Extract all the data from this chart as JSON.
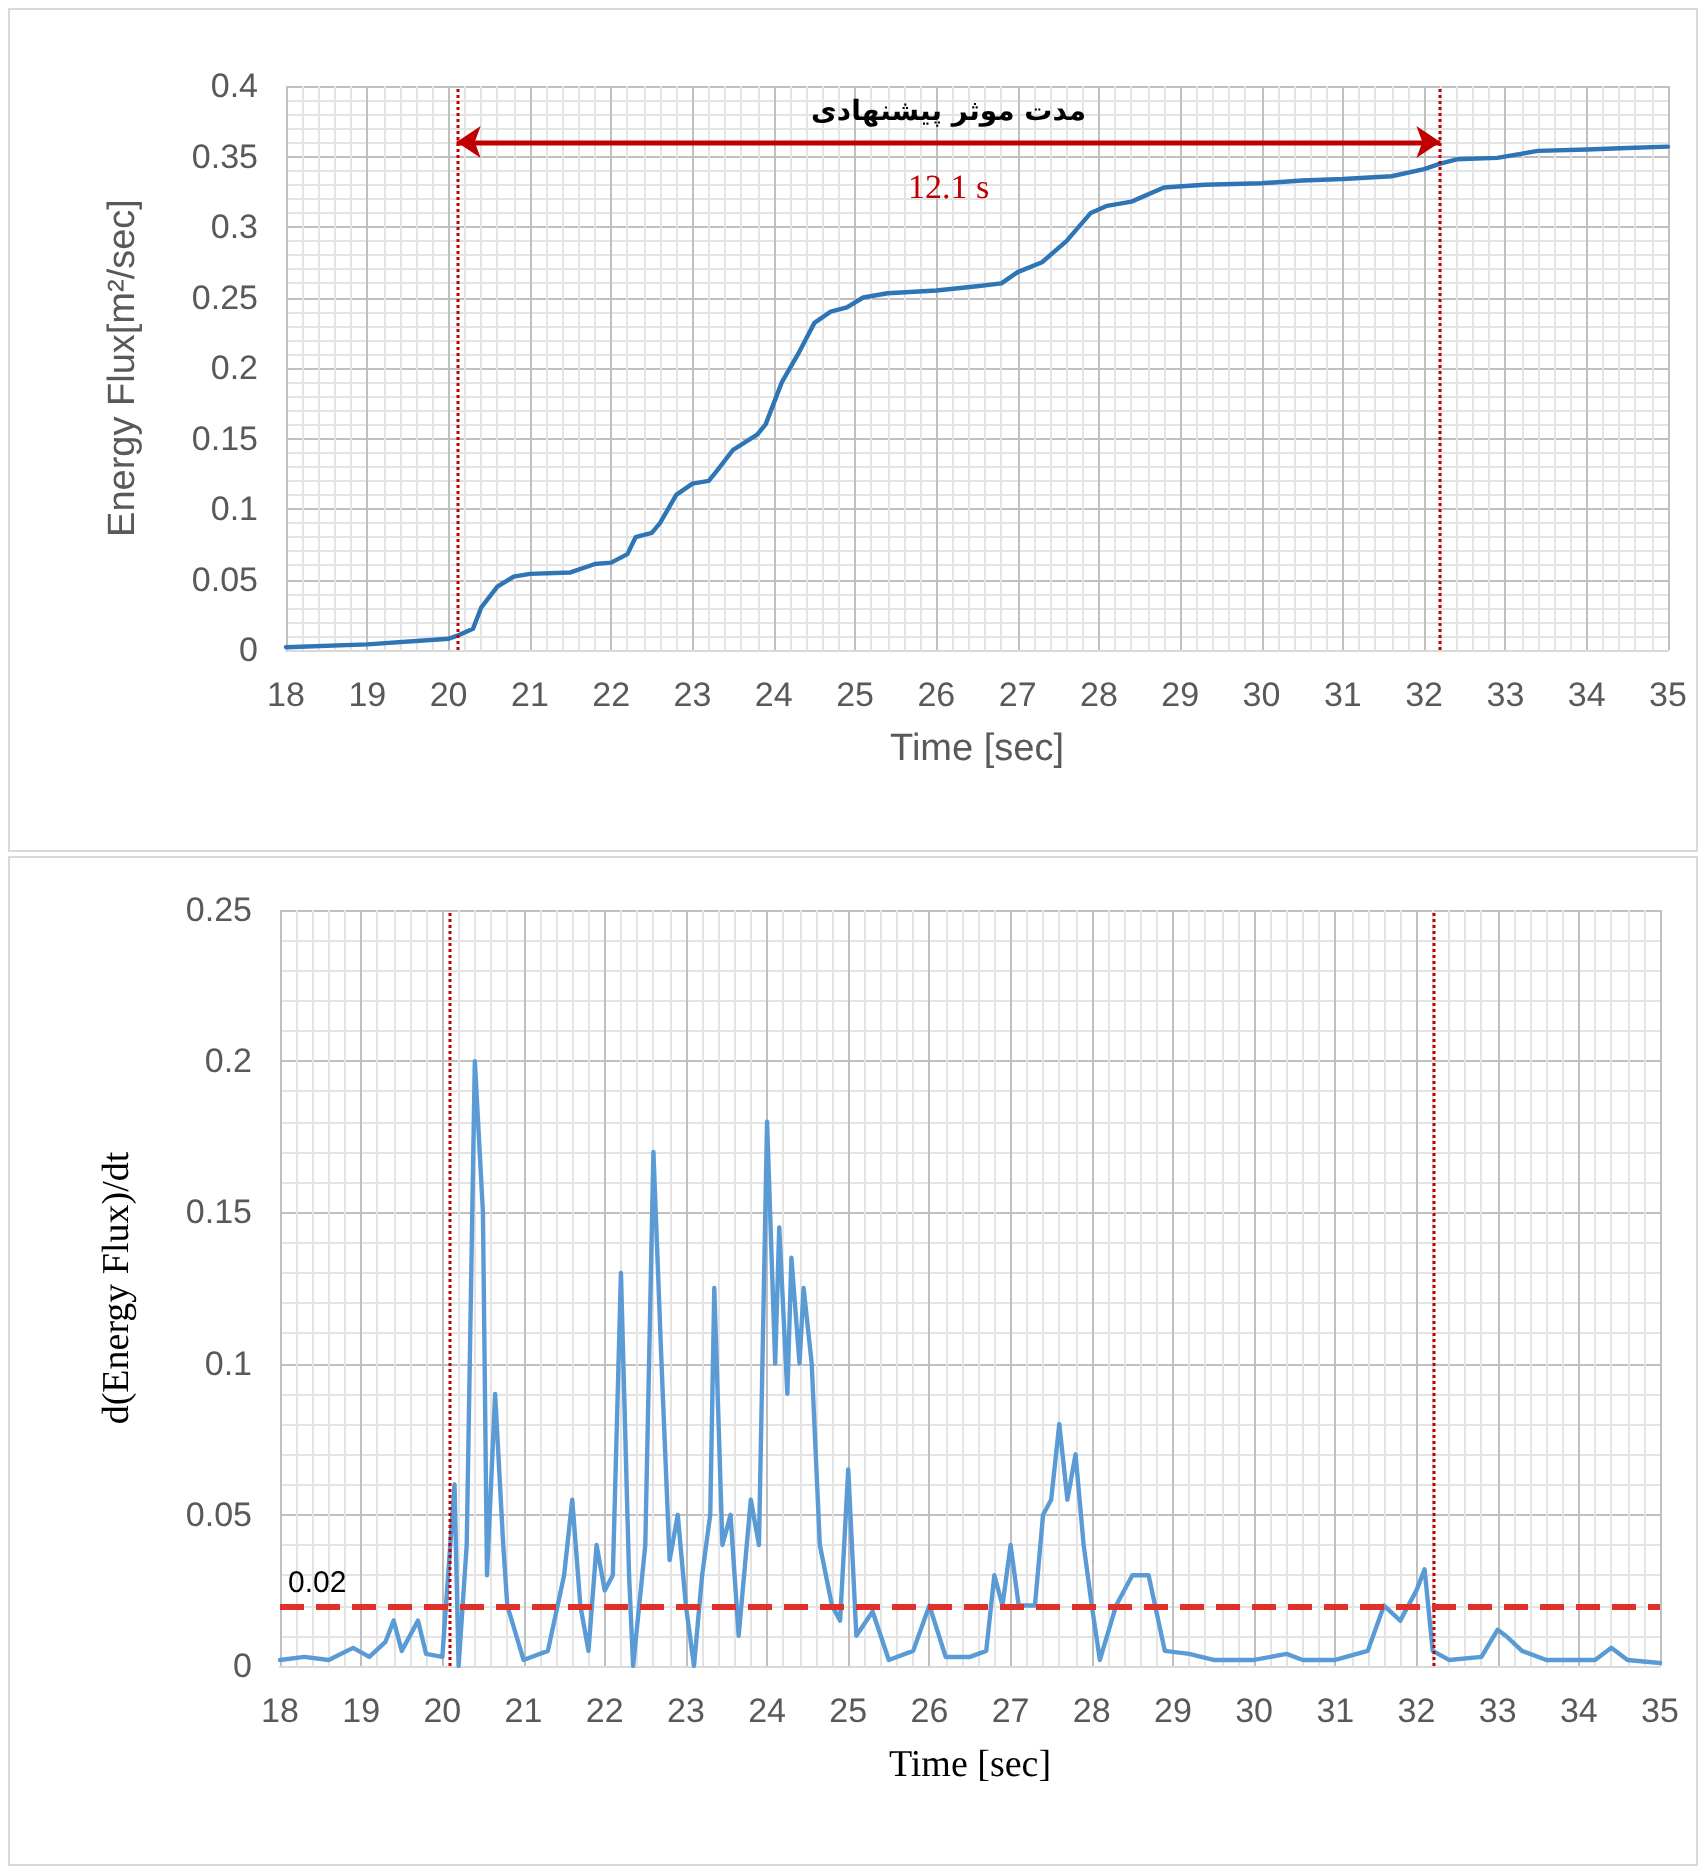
{
  "chart_data": [
    {
      "type": "line",
      "xlabel": "Time [sec]",
      "ylabel": "Energy Flux[m²/sec]",
      "xlim": [
        18,
        35
      ],
      "xticks": [
        18,
        19,
        20,
        21,
        22,
        23,
        24,
        25,
        26,
        27,
        28,
        29,
        30,
        31,
        32,
        33,
        34,
        35
      ],
      "ylim": [
        0,
        0.4
      ],
      "yticks": [
        0,
        0.05,
        0.1,
        0.15,
        0.2,
        0.25,
        0.3,
        0.35,
        0.4
      ],
      "grid": true,
      "marker": "none",
      "line_style": "solid",
      "series": [
        {
          "color": "#2e75b6",
          "x": [
            18,
            19,
            20,
            20.1,
            20.3,
            20.4,
            20.6,
            20.8,
            21,
            21.5,
            21.8,
            22,
            22.2,
            22.3,
            22.5,
            22.6,
            22.8,
            23,
            23.2,
            23.3,
            23.5,
            23.8,
            23.9,
            24.1,
            24.3,
            24.5,
            24.7,
            24.9,
            25.1,
            25.4,
            26,
            26.5,
            26.8,
            27,
            27.3,
            27.6,
            27.9,
            28.1,
            28.4,
            28.8,
            29.3,
            30,
            30.5,
            31,
            31.6,
            32,
            32.2,
            32.4,
            32.9,
            33.4,
            34,
            34.5,
            35
          ],
          "values": [
            0.002,
            0.004,
            0.008,
            0.01,
            0.015,
            0.03,
            0.045,
            0.052,
            0.054,
            0.055,
            0.061,
            0.062,
            0.068,
            0.08,
            0.083,
            0.09,
            0.11,
            0.118,
            0.12,
            0.127,
            0.142,
            0.153,
            0.16,
            0.19,
            0.21,
            0.232,
            0.24,
            0.243,
            0.25,
            0.253,
            0.255,
            0.258,
            0.26,
            0.268,
            0.275,
            0.29,
            0.31,
            0.315,
            0.318,
            0.328,
            0.33,
            0.331,
            0.333,
            0.334,
            0.336,
            0.341,
            0.345,
            0.348,
            0.349,
            0.354,
            0.355,
            0.356,
            0.357
          ]
        }
      ],
      "ref_lines": [
        {
          "axis": "x",
          "value": 20.1,
          "color": "#c00000",
          "line_style": "dotted"
        },
        {
          "axis": "x",
          "value": 32.2,
          "color": "#c00000",
          "line_style": "dotted"
        }
      ],
      "annotations": [
        "مدت موثر پیشنهادی",
        "12.1 s"
      ]
    },
    {
      "type": "line",
      "xlabel": "Time [sec]",
      "ylabel": "d(Energy Flux)/dt",
      "xlim": [
        18,
        35
      ],
      "xticks": [
        18,
        19,
        20,
        21,
        22,
        23,
        24,
        25,
        26,
        27,
        28,
        29,
        30,
        31,
        32,
        33,
        34,
        35
      ],
      "ylim": [
        0,
        0.25
      ],
      "yticks": [
        0,
        0.05,
        0.1,
        0.15,
        0.2,
        0.25
      ],
      "grid": true,
      "marker": "none",
      "line_style": "solid",
      "series": [
        {
          "color": "#5b9bd5",
          "x": [
            18,
            18.3,
            18.6,
            18.9,
            19.1,
            19.3,
            19.4,
            19.5,
            19.7,
            19.8,
            20,
            20.15,
            20.2,
            20.3,
            20.4,
            20.5,
            20.55,
            20.65,
            20.75,
            20.8,
            21,
            21.3,
            21.5,
            21.6,
            21.7,
            21.8,
            21.9,
            22,
            22.1,
            22.2,
            22.3,
            22.35,
            22.5,
            22.6,
            22.7,
            22.8,
            22.9,
            23,
            23.1,
            23.2,
            23.3,
            23.35,
            23.45,
            23.55,
            23.65,
            23.8,
            23.9,
            24,
            24.1,
            24.15,
            24.25,
            24.3,
            24.4,
            24.45,
            24.55,
            24.65,
            24.8,
            24.9,
            25,
            25.1,
            25.3,
            25.5,
            25.8,
            26,
            26.2,
            26.5,
            26.7,
            26.8,
            26.9,
            27,
            27.1,
            27.3,
            27.4,
            27.5,
            27.6,
            27.7,
            27.8,
            27.9,
            28,
            28.1,
            28.3,
            28.5,
            28.7,
            28.9,
            29.2,
            29.5,
            30,
            30.4,
            30.6,
            31,
            31.4,
            31.6,
            31.8,
            32,
            32.1,
            32.2,
            32.4,
            32.8,
            33,
            33.1,
            33.3,
            33.6,
            34.2,
            34.4,
            34.6,
            35
          ],
          "values": [
            0.002,
            0.003,
            0.002,
            0.006,
            0.003,
            0.008,
            0.015,
            0.005,
            0.015,
            0.004,
            0.003,
            0.06,
            0,
            0.04,
            0.2,
            0.15,
            0.03,
            0.09,
            0.04,
            0.02,
            0.002,
            0.005,
            0.03,
            0.055,
            0.02,
            0.005,
            0.04,
            0.025,
            0.03,
            0.13,
            0.03,
            0,
            0.04,
            0.17,
            0.1,
            0.035,
            0.05,
            0.02,
            0,
            0.03,
            0.05,
            0.125,
            0.04,
            0.05,
            0.01,
            0.055,
            0.04,
            0.18,
            0.1,
            0.145,
            0.09,
            0.135,
            0.1,
            0.125,
            0.1,
            0.04,
            0.02,
            0.015,
            0.065,
            0.01,
            0.018,
            0.002,
            0.005,
            0.02,
            0.003,
            0.003,
            0.005,
            0.03,
            0.02,
            0.04,
            0.02,
            0.02,
            0.05,
            0.055,
            0.08,
            0.055,
            0.07,
            0.04,
            0.02,
            0.002,
            0.02,
            0.03,
            0.03,
            0.005,
            0.004,
            0.002,
            0.002,
            0.004,
            0.002,
            0.002,
            0.005,
            0.02,
            0.015,
            0.025,
            0.032,
            0.005,
            0.002,
            0.003,
            0.012,
            0.01,
            0.005,
            0.002,
            0.002,
            0.006,
            0.002,
            0.001
          ]
        }
      ],
      "ref_lines": [
        {
          "axis": "x",
          "value": 20.1,
          "color": "#c00000",
          "line_style": "dotted"
        },
        {
          "axis": "x",
          "value": 32.2,
          "color": "#c00000",
          "line_style": "dotted"
        },
        {
          "axis": "y",
          "value": 0.02,
          "label": "0.02",
          "color": "#e0302a",
          "line_style": "dashed"
        }
      ]
    }
  ]
}
